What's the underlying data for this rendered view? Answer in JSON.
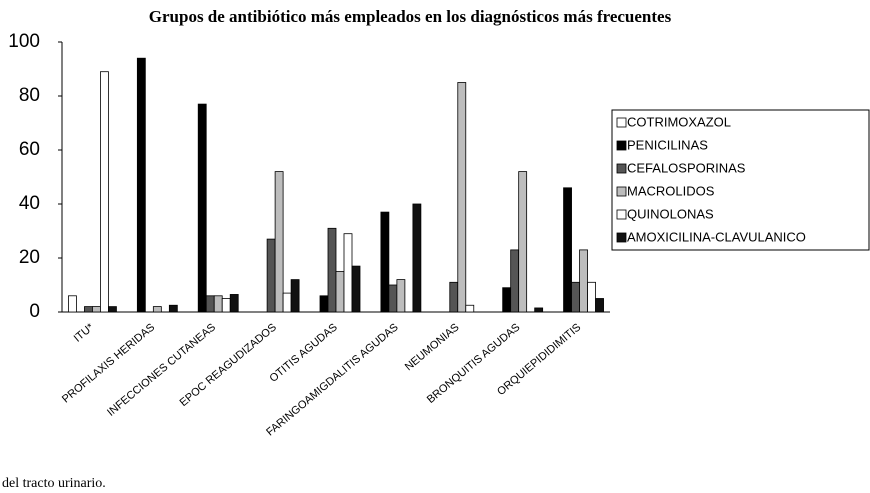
{
  "chart_data": {
    "type": "bar",
    "title": "Grupos de antibiótico más empleados en los diagnósticos más frecuentes",
    "categories": [
      "ITU*",
      "PROFILAXIS HERIDAS",
      "INFECCIONES CUTANEAS",
      "EPOC REAGUDIZADOS",
      "OTITIS AGUDAS",
      "FARINGOAMIGDALITIS AGUDAS",
      "NEUMONIAS",
      "BRONQUITIS AGUDAS",
      "ORQUIEPIDIDIMITIS"
    ],
    "series": [
      {
        "name": "COTRIMOXAZOL",
        "color": "#ffffff",
        "values": [
          6,
          0,
          0,
          0,
          0,
          0,
          0,
          0,
          0
        ]
      },
      {
        "name": "PENICILINAS",
        "color": "#000000",
        "values": [
          0,
          94,
          77,
          0,
          6,
          37,
          0,
          9,
          46
        ]
      },
      {
        "name": "CEFALOSPORINAS",
        "color": "#555555",
        "values": [
          2,
          0,
          6,
          27,
          31,
          10,
          11,
          23,
          11
        ]
      },
      {
        "name": "MACROLIDOS",
        "color": "#bdbdbd",
        "values": [
          2,
          2,
          6,
          52,
          15,
          12,
          85,
          52,
          23
        ]
      },
      {
        "name": "QUINOLONAS",
        "color": "#ffffff",
        "values": [
          89,
          0,
          5,
          7,
          29,
          0,
          2.5,
          0,
          11
        ]
      },
      {
        "name": "AMOXICILINA-CLAVULANICO",
        "color": "#111111",
        "values": [
          2,
          2.5,
          6.5,
          12,
          17,
          40,
          0,
          1.5,
          5
        ]
      }
    ],
    "ylim": [
      0,
      100
    ],
    "yticks": [
      0,
      20,
      40,
      60,
      80,
      100
    ],
    "footnote": "del tracto urinario."
  }
}
